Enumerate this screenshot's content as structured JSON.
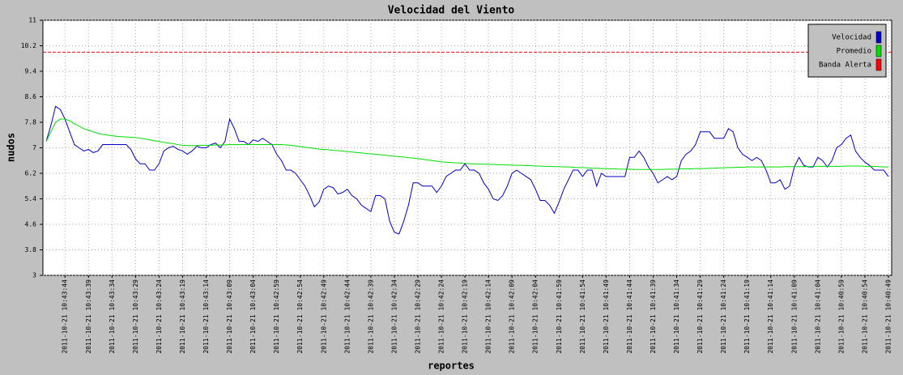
{
  "chart_data": {
    "type": "line",
    "title": "Velocidad del Viento",
    "x_label": "reportes",
    "y_label": "nudos",
    "categories": [
      null,
      null,
      null,
      null,
      "2011-10-21 10:43:44",
      null,
      null,
      null,
      null,
      "2011-10-21 10:43:39",
      null,
      null,
      null,
      null,
      "2011-10-21 10:43:34",
      null,
      null,
      null,
      null,
      "2011-10-21 10:43:29",
      null,
      null,
      null,
      null,
      "2011-10-21 10:43:24",
      null,
      null,
      null,
      null,
      "2011-10-21 10:43:19",
      null,
      null,
      null,
      null,
      "2011-10-21 10:43:14",
      null,
      null,
      null,
      null,
      "2011-10-21 10:43:09",
      null,
      null,
      null,
      null,
      "2011-10-21 10:43:04",
      null,
      null,
      null,
      null,
      "2011-10-21 10:42:59",
      null,
      null,
      null,
      null,
      "2011-10-21 10:42:54",
      null,
      null,
      null,
      null,
      "2011-10-21 10:42:49",
      null,
      null,
      null,
      null,
      "2011-10-21 10:42:44",
      null,
      null,
      null,
      null,
      "2011-10-21 10:42:39",
      null,
      null,
      null,
      null,
      "2011-10-21 10:42:34",
      null,
      null,
      null,
      null,
      "2011-10-21 10:42:29",
      null,
      null,
      null,
      null,
      "2011-10-21 10:42:24",
      null,
      null,
      null,
      null,
      "2011-10-21 10:42:19",
      null,
      null,
      null,
      null,
      "2011-10-21 10:42:14",
      null,
      null,
      null,
      null,
      "2011-10-21 10:42:09",
      null,
      null,
      null,
      null,
      "2011-10-21 10:42:04",
      null,
      null,
      null,
      null,
      "2011-10-21 10:41:59",
      null,
      null,
      null,
      null,
      "2011-10-21 10:41:54",
      null,
      null,
      null,
      null,
      "2011-10-21 10:41:49",
      null,
      null,
      null,
      null,
      "2011-10-21 10:41:44",
      null,
      null,
      null,
      null,
      "2011-10-21 10:41:39",
      null,
      null,
      null,
      null,
      "2011-10-21 10:41:34",
      null,
      null,
      null,
      null,
      "2011-10-21 10:41:29",
      null,
      null,
      null,
      null,
      "2011-10-21 10:41:24",
      null,
      null,
      null,
      null,
      "2011-10-21 10:41:19",
      null,
      null,
      null,
      null,
      "2011-10-21 10:41:14",
      null,
      null,
      null,
      null,
      "2011-10-21 10:41:09",
      null,
      null,
      null,
      null,
      "2011-10-21 10:41:04",
      null,
      null,
      null,
      null,
      "2011-10-21 10:40:59",
      null,
      null,
      null,
      null,
      "2011-10-21 10:40:54",
      null,
      null,
      null,
      null,
      "2011-10-21 10:40:49"
    ],
    "series": [
      {
        "name": "Velocidad",
        "color": "#0000cc",
        "values": [
          7.2,
          7.7,
          8.3,
          8.2,
          7.9,
          7.5,
          7.1,
          7.0,
          6.9,
          6.95,
          6.85,
          6.9,
          7.1,
          7.1,
          7.1,
          7.1,
          7.1,
          7.1,
          6.95,
          6.65,
          6.5,
          6.5,
          6.3,
          6.3,
          6.5,
          6.9,
          7.0,
          7.05,
          6.95,
          6.9,
          6.8,
          6.9,
          7.05,
          7.0,
          7.0,
          7.1,
          7.15,
          7.0,
          7.2,
          7.9,
          7.6,
          7.2,
          7.2,
          7.1,
          7.25,
          7.2,
          7.3,
          7.2,
          7.1,
          6.8,
          6.6,
          6.3,
          6.3,
          6.2,
          6.0,
          5.8,
          5.5,
          5.15,
          5.3,
          5.7,
          5.8,
          5.75,
          5.55,
          5.6,
          5.7,
          5.5,
          5.4,
          5.2,
          5.1,
          5.0,
          5.5,
          5.5,
          5.4,
          4.7,
          4.35,
          4.3,
          4.7,
          5.2,
          5.9,
          5.9,
          5.8,
          5.8,
          5.8,
          5.6,
          5.8,
          6.1,
          6.2,
          6.3,
          6.3,
          6.5,
          6.3,
          6.3,
          6.2,
          5.9,
          5.7,
          5.4,
          5.35,
          5.5,
          5.8,
          6.2,
          6.3,
          6.2,
          6.1,
          6.0,
          5.7,
          5.35,
          5.35,
          5.2,
          4.95,
          5.3,
          5.7,
          6.0,
          6.3,
          6.3,
          6.1,
          6.3,
          6.3,
          5.8,
          6.2,
          6.1,
          6.1,
          6.1,
          6.1,
          6.1,
          6.7,
          6.7,
          6.9,
          6.7,
          6.4,
          6.2,
          5.9,
          6.0,
          6.1,
          6.0,
          6.1,
          6.6,
          6.8,
          6.9,
          7.1,
          7.5,
          7.5,
          7.5,
          7.3,
          7.3,
          7.3,
          7.6,
          7.5,
          7.0,
          6.8,
          6.7,
          6.6,
          6.7,
          6.6,
          6.3,
          5.9,
          5.9,
          6.0,
          5.7,
          5.8,
          6.4,
          6.7,
          6.45,
          6.4,
          6.4,
          6.7,
          6.6,
          6.4,
          6.6,
          7.0,
          7.1,
          7.3,
          7.4,
          6.9,
          6.7,
          6.55,
          6.45,
          6.3,
          6.3,
          6.3,
          6.1
        ]
      },
      {
        "name": "Promedio",
        "color": "#00dd00",
        "values": [
          7.2,
          7.5,
          7.8,
          7.9,
          7.9,
          7.85,
          7.75,
          7.68,
          7.6,
          7.55,
          7.5,
          7.45,
          7.42,
          7.4,
          7.38,
          7.36,
          7.35,
          7.34,
          7.33,
          7.32,
          7.3,
          7.28,
          7.25,
          7.22,
          7.2,
          7.17,
          7.15,
          7.13,
          7.1,
          7.08,
          7.07,
          7.07,
          7.07,
          7.08,
          7.08,
          7.08,
          7.09,
          7.09,
          7.09,
          7.1,
          7.1,
          7.1,
          7.1,
          7.1,
          7.1,
          7.1,
          7.1,
          7.1,
          7.1,
          7.1,
          7.1,
          7.09,
          7.08,
          7.06,
          7.04,
          7.02,
          7.0,
          6.98,
          6.96,
          6.95,
          6.94,
          6.92,
          6.91,
          6.9,
          6.88,
          6.87,
          6.85,
          6.84,
          6.82,
          6.81,
          6.8,
          6.78,
          6.77,
          6.75,
          6.74,
          6.72,
          6.71,
          6.69,
          6.68,
          6.66,
          6.64,
          6.62,
          6.6,
          6.58,
          6.56,
          6.55,
          6.54,
          6.53,
          6.52,
          6.51,
          6.5,
          6.5,
          6.49,
          6.49,
          6.48,
          6.48,
          6.47,
          6.47,
          6.46,
          6.46,
          6.45,
          6.45,
          6.44,
          6.44,
          6.43,
          6.43,
          6.42,
          6.42,
          6.41,
          6.41,
          6.4,
          6.4,
          6.39,
          6.38,
          6.38,
          6.37,
          6.36,
          6.36,
          6.35,
          6.35,
          6.34,
          6.34,
          6.33,
          6.33,
          6.33,
          6.32,
          6.32,
          6.32,
          6.32,
          6.32,
          6.32,
          6.32,
          6.33,
          6.33,
          6.33,
          6.34,
          6.34,
          6.34,
          6.35,
          6.35,
          6.35,
          6.36,
          6.36,
          6.37,
          6.37,
          6.38,
          6.38,
          6.39,
          6.39,
          6.4,
          6.4,
          6.4,
          6.4,
          6.4,
          6.4,
          6.4,
          6.4,
          6.41,
          6.41,
          6.41,
          6.41,
          6.41,
          6.41,
          6.42,
          6.42,
          6.42,
          6.42,
          6.42,
          6.42,
          6.42,
          6.43,
          6.43,
          6.43,
          6.43,
          6.42,
          6.42,
          6.42,
          6.41,
          6.4,
          6.4
        ]
      }
    ],
    "threshold": {
      "name": "Banda Alerta",
      "color": "#ff0000",
      "value": 10
    },
    "ylim": [
      3,
      11
    ],
    "yticks": [
      3,
      3.8,
      4.6,
      5.4,
      6.2,
      7,
      7.8,
      8.6,
      9.4,
      10.2,
      11
    ],
    "grid": true,
    "legend": "top-right"
  }
}
